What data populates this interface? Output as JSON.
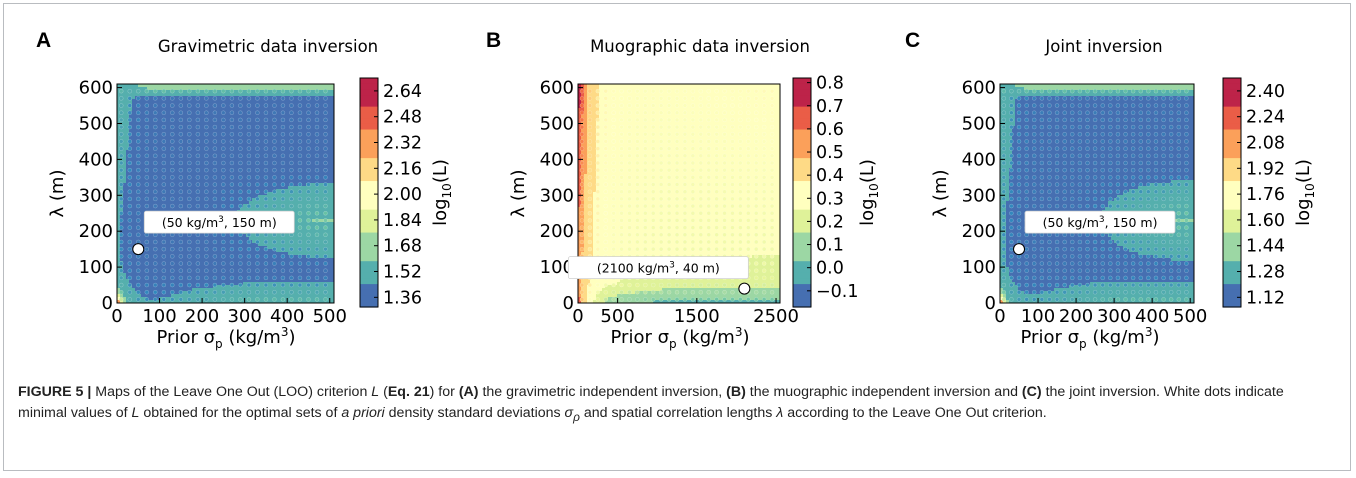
{
  "chart_data": [
    {
      "type": "heatmap",
      "panel_label": "A",
      "title": "Gravimetric data inversion",
      "xlabel": "Prior σ_p (kg/m³)",
      "ylabel": "λ (m)",
      "xlim": [
        0,
        510
      ],
      "ylim": [
        0,
        610
      ],
      "xticks": [
        0,
        100,
        200,
        300,
        400,
        500
      ],
      "yticks": [
        0,
        100,
        200,
        300,
        400,
        500,
        600
      ],
      "colorbar": {
        "label": "log10(L)",
        "min": 1.3,
        "max": 2.72,
        "ticks": [
          "2.64",
          "2.48",
          "2.32",
          "2.16",
          "2.00",
          "1.84",
          "1.68",
          "1.52",
          "1.36"
        ]
      },
      "optimum": {
        "x": 50,
        "y": 150,
        "label": "(50 kg/m³, 150 m)"
      },
      "grid_points": {
        "x_min": 10,
        "x_max": 500,
        "x_step": 20,
        "y_min": 10,
        "y_max": 600,
        "y_step": 20
      }
    },
    {
      "type": "heatmap",
      "panel_label": "B",
      "title": "Muographic data inversion",
      "xlabel": "Prior σ_p (kg/m³)",
      "ylabel": "λ (m)",
      "xlim": [
        0,
        2550
      ],
      "ylim": [
        0,
        610
      ],
      "xticks": [
        0,
        500,
        1500,
        2500
      ],
      "yticks": [
        0,
        100,
        200,
        300,
        400,
        500,
        600
      ],
      "colorbar": {
        "label": "log10(L)",
        "min": -0.17,
        "max": 0.82,
        "ticks": [
          "0.8",
          "0.7",
          "0.6",
          "0.5",
          "0.4",
          "0.3",
          "0.2",
          "0.1",
          "0.0",
          "−0.1"
        ]
      },
      "optimum": {
        "x": 2100,
        "y": 40,
        "label": "(2100 kg/m³, 40 m)"
      },
      "grid_points": {
        "x_min": 50,
        "x_max": 2500,
        "x_step": 100,
        "y_min": 10,
        "y_max": 600,
        "y_step": 20
      }
    },
    {
      "type": "heatmap",
      "panel_label": "C",
      "title": "Joint inversion",
      "xlabel": "Prior σ_p (kg/m³)",
      "ylabel": "λ (m)",
      "xlim": [
        0,
        510
      ],
      "ylim": [
        0,
        610
      ],
      "xticks": [
        0,
        100,
        200,
        300,
        400,
        500
      ],
      "yticks": [
        0,
        100,
        200,
        300,
        400,
        500,
        600
      ],
      "colorbar": {
        "label": "log10(L)",
        "min": 1.06,
        "max": 2.48,
        "ticks": [
          "2.40",
          "2.24",
          "2.08",
          "1.92",
          "1.76",
          "1.60",
          "1.44",
          "1.28",
          "1.12"
        ]
      },
      "optimum": {
        "x": 50,
        "y": 150,
        "label": "(50 kg/m³, 150 m)"
      },
      "grid_points": {
        "x_min": 10,
        "x_max": 500,
        "x_step": 20,
        "y_min": 10,
        "y_max": 600,
        "y_step": 20
      }
    }
  ],
  "caption": {
    "figure_label": "FIGURE 5 |",
    "part1": " Maps of the Leave One Out (LOO) criterion ",
    "symbol_L": "L",
    "part2": " (",
    "eq": "Eq. 21",
    "part3": ") for ",
    "a": "(A)",
    "part4": " the gravimetric independent inversion, ",
    "b": "(B)",
    "part5": " the muographic independent inversion and ",
    "c": "(C)",
    "part6": " the joint inversion. White dots indicate minimal values of ",
    "symbol_L2": "L",
    "part7": " obtained for the optimal sets of ",
    "apriori": "a priori",
    "part8": " density standard deviations ",
    "sigma": "σ",
    "sigma_sub": "ρ",
    "part9": " and spatial correlation lengths ",
    "lambda": "λ",
    "part10": " according to the Leave One Out criterion."
  }
}
